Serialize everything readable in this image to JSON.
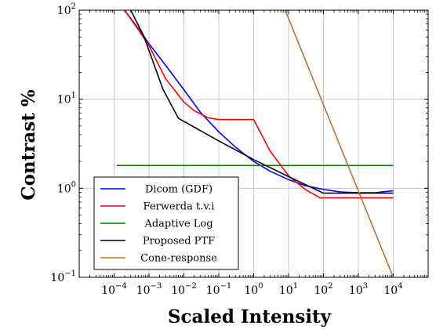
{
  "chart_data": {
    "type": "line",
    "title": "",
    "xlabel": "Scaled Intensity",
    "ylabel": "Contrast %",
    "xscale": "log",
    "yscale": "log",
    "xlim": [
      1e-05,
      100000
    ],
    "ylim": [
      0.1,
      100
    ],
    "grid": true,
    "legend_position": "bottom-left",
    "x_tick_labels": [
      {
        "value": 0.0001,
        "base": "10",
        "exp": "−4"
      },
      {
        "value": 0.001,
        "base": "10",
        "exp": "−3"
      },
      {
        "value": 0.01,
        "base": "10",
        "exp": "−2"
      },
      {
        "value": 0.1,
        "base": "10",
        "exp": "−1"
      },
      {
        "value": 1,
        "base": "10",
        "exp": "0"
      },
      {
        "value": 10,
        "base": "10",
        "exp": "1"
      },
      {
        "value": 100,
        "base": "10",
        "exp": "2"
      },
      {
        "value": 1000,
        "base": "10",
        "exp": "3"
      },
      {
        "value": 10000,
        "base": "10",
        "exp": "4"
      }
    ],
    "y_tick_labels": [
      {
        "value": 0.1,
        "base": "10",
        "exp": "−1"
      },
      {
        "value": 1,
        "base": "10",
        "exp": "0"
      },
      {
        "value": 10,
        "base": "10",
        "exp": "1"
      },
      {
        "value": 100,
        "base": "10",
        "exp": "2"
      }
    ],
    "series": [
      {
        "name": "Dicom (GDF)",
        "color": "#0000ff",
        "x": [
          0.0002,
          0.0005,
          0.001,
          0.003,
          0.01,
          0.03,
          0.1,
          0.3,
          1,
          3,
          10,
          30,
          100,
          300,
          1000,
          3000,
          10000
        ],
        "y": [
          100,
          62,
          42,
          24,
          12.8,
          7.1,
          4.3,
          2.9,
          2.0,
          1.55,
          1.25,
          1.07,
          0.97,
          0.91,
          0.89,
          0.89,
          0.94
        ]
      },
      {
        "name": "Ferwerda t.v.i",
        "color": "#ff0000",
        "x": [
          0.0002,
          0.0005,
          0.001,
          0.003,
          0.01,
          0.02,
          0.05,
          0.1,
          0.3,
          1,
          3,
          10,
          30,
          80,
          300,
          1000,
          10000
        ],
        "y": [
          100,
          60,
          40,
          17,
          9.3,
          7.4,
          6.2,
          5.9,
          5.9,
          5.9,
          2.6,
          1.38,
          0.97,
          0.78,
          0.78,
          0.78,
          0.78
        ]
      },
      {
        "name": "Adaptive Log",
        "color": "#008000",
        "x": [
          0.00012,
          10000
        ],
        "y": [
          1.8,
          1.8
        ]
      },
      {
        "name": "Proposed PTF",
        "color": "#000000",
        "x": [
          0.0003,
          0.0007,
          0.0025,
          0.007,
          0.1,
          1,
          10,
          100,
          1000,
          10000
        ],
        "y": [
          100,
          52,
          13,
          6.1,
          3.4,
          2.1,
          1.35,
          0.88,
          0.88,
          0.88
        ]
      },
      {
        "name": "Cone-response",
        "color": "#b87333",
        "x": [
          8,
          10000
        ],
        "y": [
          100,
          0.1
        ]
      }
    ]
  }
}
